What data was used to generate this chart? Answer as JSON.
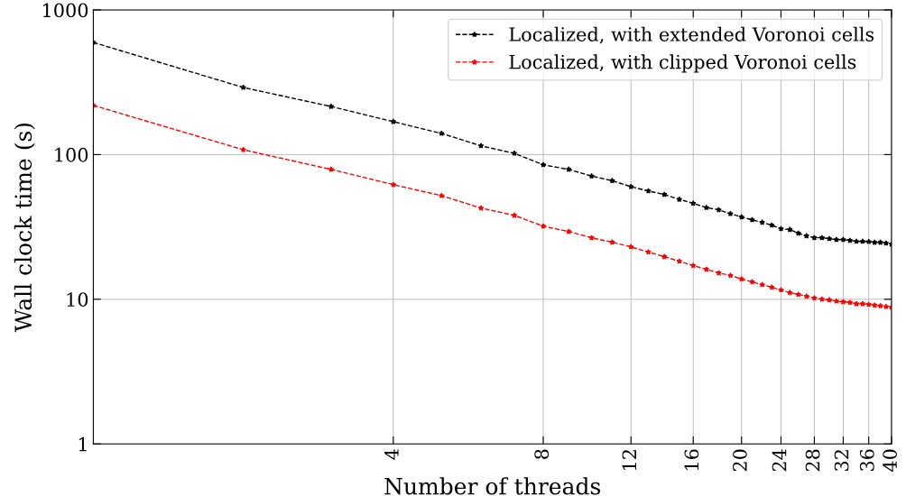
{
  "chart_data": {
    "type": "line",
    "xlabel": "Number of threads",
    "ylabel": "Wall clock time (s)",
    "log": "xy",
    "xlim": [
      1,
      40
    ],
    "ylim": [
      1,
      1000
    ],
    "xticks": [
      4,
      8,
      12,
      16,
      20,
      24,
      28,
      32,
      36,
      40
    ],
    "yticks": [
      1,
      10,
      100,
      1000
    ],
    "grid": true,
    "legend": "top right",
    "marker": "star",
    "line_style": "dashed",
    "x": [
      1,
      2,
      3,
      4,
      5,
      6,
      7,
      8,
      9,
      10,
      11,
      12,
      13,
      14,
      15,
      16,
      17,
      18,
      19,
      20,
      21,
      22,
      23,
      24,
      25,
      26,
      27,
      28,
      29,
      30,
      31,
      32,
      33,
      34,
      35,
      36,
      37,
      38,
      39,
      40
    ],
    "series": [
      {
        "name": "Localized, with extended Voronoi cells",
        "color": "#000000",
        "values": [
          596,
          291,
          215,
          169,
          140,
          115,
          102,
          85,
          79,
          71,
          66,
          60,
          56,
          53,
          49,
          46,
          43,
          41.5,
          39,
          37,
          35.4,
          34,
          32.5,
          30.7,
          30.3,
          28.6,
          27.4,
          26.6,
          26.6,
          26.2,
          25.8,
          25.8,
          25.5,
          25.1,
          25.1,
          25,
          24.7,
          24.7,
          24.4,
          24
        ]
      },
      {
        "name": "Localized, with clipped Voronoi cells",
        "color": "#ff0000",
        "values": [
          219,
          108,
          79,
          62,
          52,
          42.7,
          38,
          32,
          29.4,
          26.6,
          24.8,
          23,
          21.2,
          19.7,
          18.3,
          17.1,
          16.1,
          15.2,
          14.6,
          13.8,
          13.2,
          12.6,
          12.1,
          11.6,
          11.1,
          10.8,
          10.5,
          10.2,
          10.0,
          9.9,
          9.7,
          9.6,
          9.5,
          9.3,
          9.3,
          9.2,
          9.1,
          9.0,
          8.9,
          8.8
        ]
      }
    ]
  }
}
